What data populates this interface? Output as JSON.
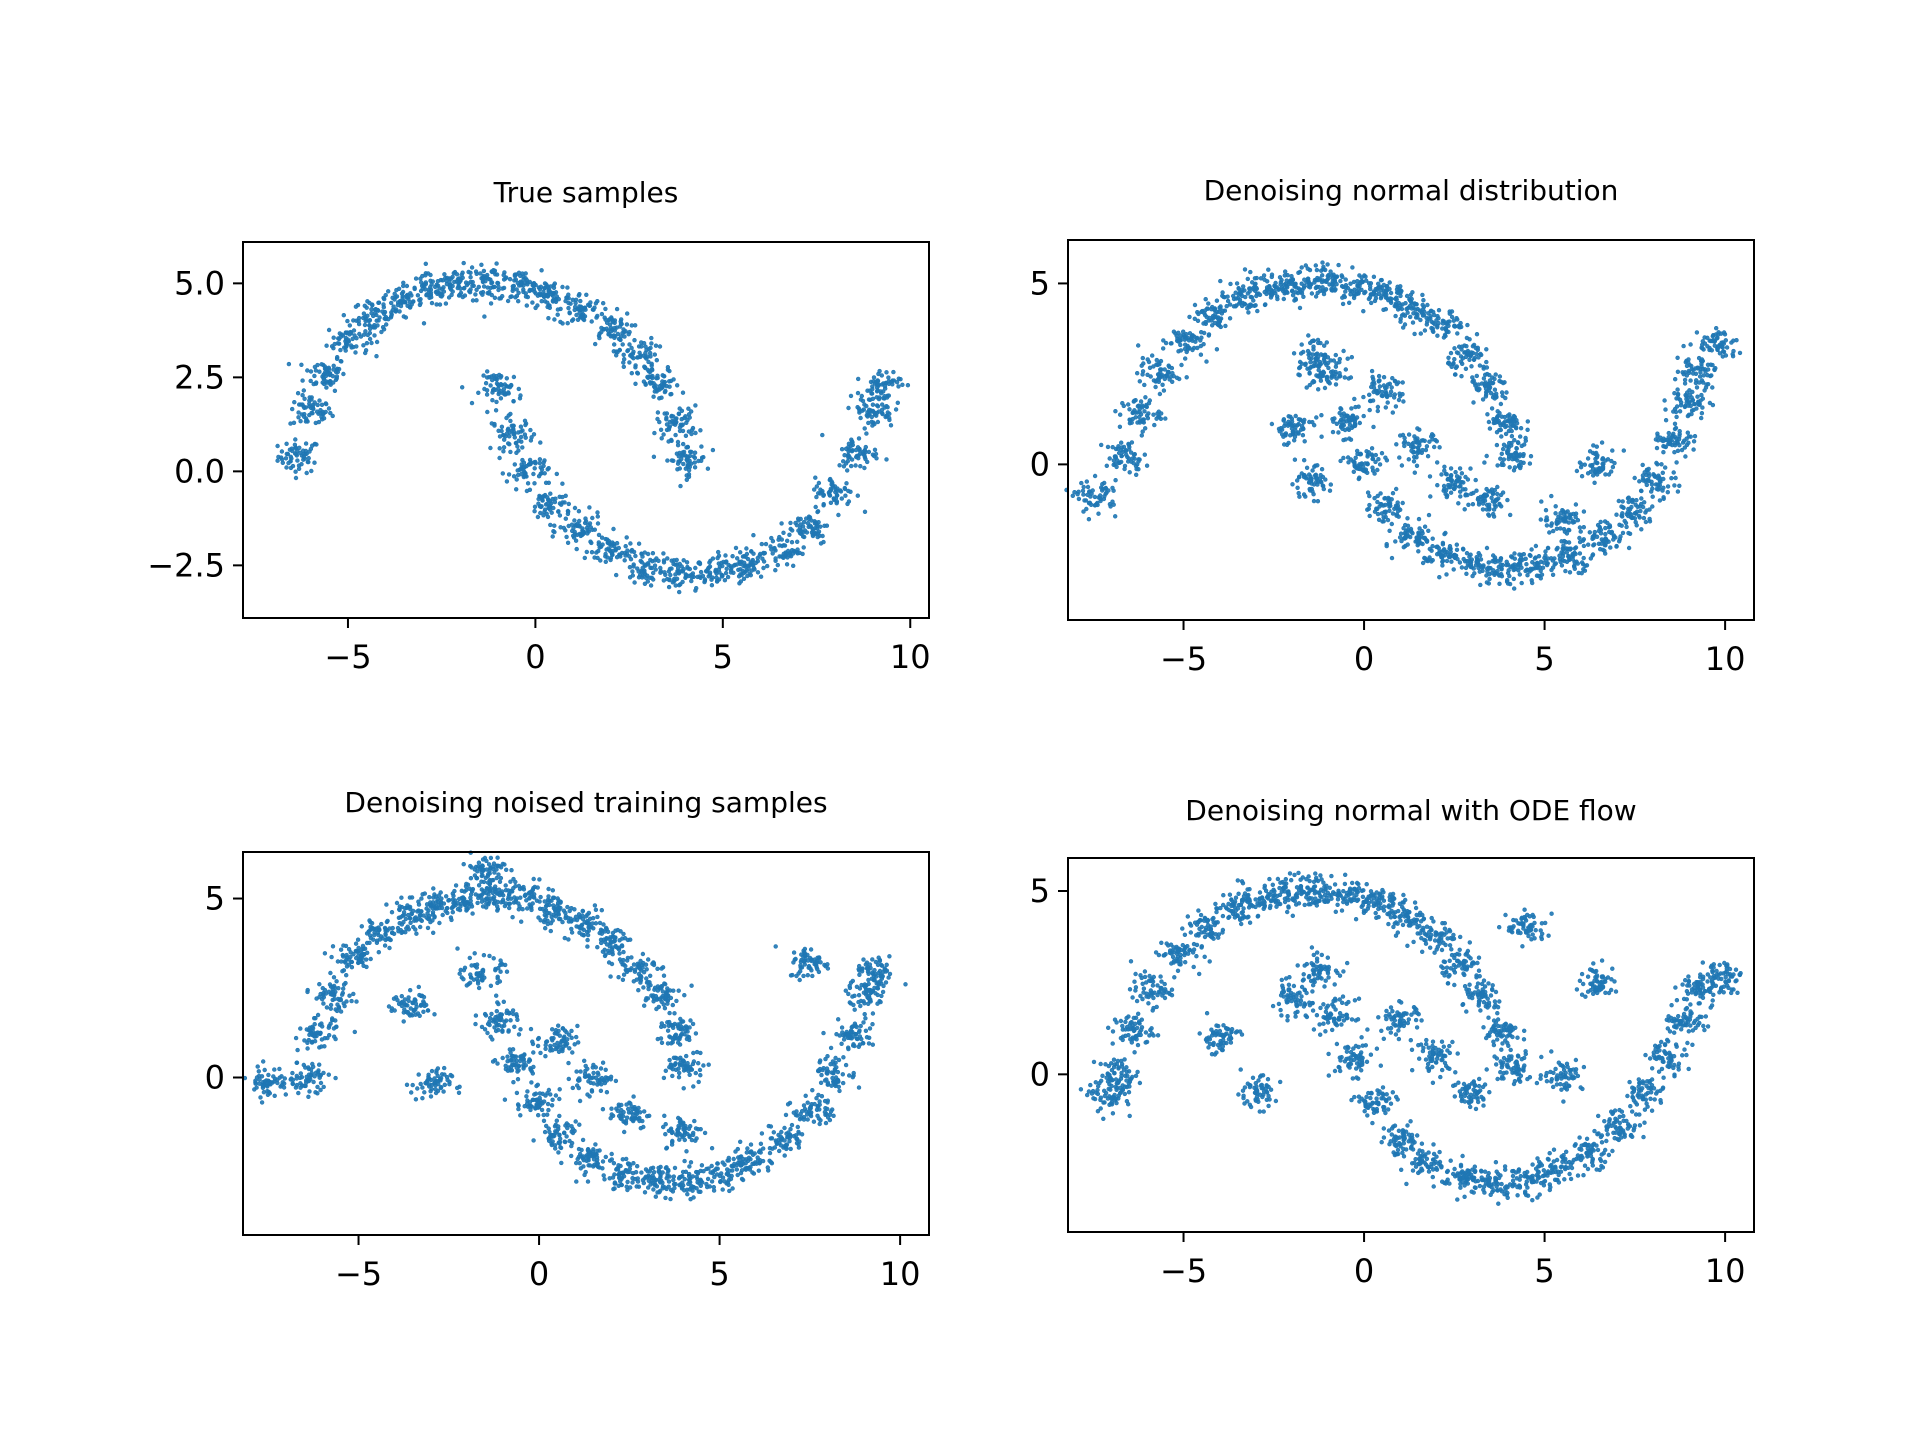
{
  "figure": {
    "marker_color": "#1f77b4"
  },
  "chart_data": [
    {
      "type": "scatter",
      "title": "True samples",
      "xlabel": "",
      "ylabel": "",
      "xlim": [
        -7.8,
        10.5
      ],
      "ylim": [
        -3.9,
        6.1
      ],
      "xticks": [
        -5,
        0,
        5,
        10
      ],
      "xtick_labels": [
        "−5",
        "0",
        "5",
        "10"
      ],
      "yticks": [
        -2.5,
        0.0,
        2.5,
        5.0
      ],
      "ytick_labels": [
        "−2.5",
        "0.0",
        "2.5",
        "5.0"
      ],
      "grid": false,
      "series": [
        {
          "values": [
            [
              -6.3,
              0.4
            ],
            [
              -6.0,
              1.6
            ],
            [
              -5.6,
              2.6
            ],
            [
              -5.0,
              3.5
            ],
            [
              -4.3,
              4.1
            ],
            [
              -3.6,
              4.5
            ],
            [
              -2.8,
              4.8
            ],
            [
              -2.0,
              5.0
            ],
            [
              -1.2,
              5.0
            ],
            [
              -0.4,
              4.9
            ],
            [
              0.4,
              4.7
            ],
            [
              1.2,
              4.3
            ],
            [
              2.0,
              3.8
            ],
            [
              2.7,
              3.1
            ],
            [
              3.3,
              2.3
            ],
            [
              3.8,
              1.3
            ],
            [
              4.0,
              0.3
            ],
            [
              -0.9,
              2.2
            ],
            [
              -0.6,
              1.0
            ],
            [
              -0.2,
              0.0
            ],
            [
              0.4,
              -0.9
            ],
            [
              1.2,
              -1.6
            ],
            [
              2.0,
              -2.1
            ],
            [
              2.9,
              -2.5
            ],
            [
              3.8,
              -2.7
            ],
            [
              4.7,
              -2.7
            ],
            [
              5.6,
              -2.5
            ],
            [
              6.5,
              -2.1
            ],
            [
              7.3,
              -1.5
            ],
            [
              8.0,
              -0.6
            ],
            [
              8.6,
              0.5
            ],
            [
              9.0,
              1.6
            ],
            [
              9.2,
              2.3
            ]
          ]
        }
      ]
    },
    {
      "type": "scatter",
      "title": "Denoising normal distribution",
      "xlabel": "",
      "ylabel": "",
      "xlim": [
        -8.2,
        10.8
      ],
      "ylim": [
        -4.3,
        6.2
      ],
      "xticks": [
        -5,
        0,
        5,
        10
      ],
      "xtick_labels": [
        "−5",
        "0",
        "5",
        "10"
      ],
      "yticks": [
        0,
        5
      ],
      "ytick_labels": [
        "0",
        "5"
      ],
      "grid": false,
      "series": [
        {
          "values": [
            [
              -6.6,
              0.2
            ],
            [
              -6.2,
              1.4
            ],
            [
              -5.7,
              2.5
            ],
            [
              -5.0,
              3.4
            ],
            [
              -4.2,
              4.1
            ],
            [
              -3.4,
              4.6
            ],
            [
              -2.6,
              4.9
            ],
            [
              -1.8,
              5.0
            ],
            [
              -1.0,
              5.1
            ],
            [
              -0.2,
              4.9
            ],
            [
              0.6,
              4.7
            ],
            [
              1.4,
              4.3
            ],
            [
              2.2,
              3.8
            ],
            [
              2.9,
              3.0
            ],
            [
              3.5,
              2.1
            ],
            [
              3.9,
              1.1
            ],
            [
              4.1,
              0.3
            ],
            [
              -1.4,
              3.0
            ],
            [
              -1.0,
              2.5
            ],
            [
              -0.5,
              1.2
            ],
            [
              0.0,
              0.0
            ],
            [
              0.6,
              -1.2
            ],
            [
              1.4,
              -2.0
            ],
            [
              2.2,
              -2.5
            ],
            [
              3.1,
              -2.8
            ],
            [
              4.0,
              -2.9
            ],
            [
              4.9,
              -2.8
            ],
            [
              5.8,
              -2.5
            ],
            [
              6.7,
              -2.0
            ],
            [
              7.5,
              -1.3
            ],
            [
              8.1,
              -0.4
            ],
            [
              8.6,
              0.7
            ],
            [
              9.0,
              1.7
            ],
            [
              9.2,
              2.6
            ],
            [
              -2.0,
              1.0
            ],
            [
              -1.5,
              -0.5
            ],
            [
              0.5,
              2.0
            ],
            [
              1.5,
              0.5
            ],
            [
              2.5,
              -0.5
            ],
            [
              3.5,
              -1.0
            ],
            [
              5.5,
              -1.5
            ],
            [
              6.5,
              0.0
            ],
            [
              9.8,
              3.3
            ],
            [
              -7.4,
              -0.9
            ]
          ]
        }
      ]
    },
    {
      "type": "scatter",
      "title": "Denoising noised training samples",
      "xlabel": "",
      "ylabel": "",
      "xlim": [
        -8.2,
        10.8
      ],
      "ylim": [
        -4.4,
        6.3
      ],
      "xticks": [
        -5,
        0,
        5,
        10
      ],
      "xtick_labels": [
        "−5",
        "0",
        "5",
        "10"
      ],
      "yticks": [
        0,
        5
      ],
      "ytick_labels": [
        "0",
        "5"
      ],
      "grid": false,
      "series": [
        {
          "values": [
            [
              -6.4,
              0.0
            ],
            [
              -6.1,
              1.2
            ],
            [
              -5.7,
              2.3
            ],
            [
              -5.1,
              3.3
            ],
            [
              -4.4,
              4.0
            ],
            [
              -3.6,
              4.5
            ],
            [
              -2.8,
              4.8
            ],
            [
              -2.0,
              5.0
            ],
            [
              -1.2,
              5.1
            ],
            [
              -0.4,
              5.0
            ],
            [
              0.4,
              4.7
            ],
            [
              1.2,
              4.3
            ],
            [
              2.0,
              3.8
            ],
            [
              2.7,
              3.1
            ],
            [
              3.3,
              2.3
            ],
            [
              3.8,
              1.3
            ],
            [
              4.1,
              0.3
            ],
            [
              -1.6,
              2.9
            ],
            [
              -1.1,
              1.6
            ],
            [
              -0.6,
              0.4
            ],
            [
              -0.1,
              -0.7
            ],
            [
              0.6,
              -1.6
            ],
            [
              1.4,
              -2.3
            ],
            [
              2.3,
              -2.7
            ],
            [
              3.2,
              -2.9
            ],
            [
              4.1,
              -2.9
            ],
            [
              5.0,
              -2.7
            ],
            [
              5.9,
              -2.3
            ],
            [
              6.8,
              -1.7
            ],
            [
              7.6,
              -0.9
            ],
            [
              8.2,
              0.1
            ],
            [
              8.7,
              1.2
            ],
            [
              9.1,
              2.3
            ],
            [
              9.3,
              2.9
            ],
            [
              -3.5,
              2.0
            ],
            [
              -3.0,
              -0.2
            ],
            [
              0.5,
              1.0
            ],
            [
              1.5,
              0.0
            ],
            [
              2.5,
              -1.0
            ],
            [
              4.0,
              -1.5
            ],
            [
              7.5,
              3.2
            ],
            [
              -7.5,
              -0.1
            ],
            [
              -1.5,
              5.8
            ]
          ]
        }
      ]
    },
    {
      "type": "scatter",
      "title": "Denoising normal with ODE flow",
      "xlabel": "",
      "ylabel": "",
      "xlim": [
        -8.2,
        10.8
      ],
      "ylim": [
        -4.3,
        5.9
      ],
      "xticks": [
        -5,
        0,
        5,
        10
      ],
      "xtick_labels": [
        "−5",
        "0",
        "5",
        "10"
      ],
      "yticks": [
        0,
        5
      ],
      "ytick_labels": [
        "0",
        "5"
      ],
      "grid": false,
      "series": [
        {
          "values": [
            [
              -6.8,
              0.0
            ],
            [
              -6.4,
              1.2
            ],
            [
              -5.9,
              2.3
            ],
            [
              -5.2,
              3.3
            ],
            [
              -4.4,
              4.0
            ],
            [
              -3.6,
              4.5
            ],
            [
              -2.8,
              4.8
            ],
            [
              -2.0,
              5.0
            ],
            [
              -1.2,
              5.0
            ],
            [
              -0.4,
              4.9
            ],
            [
              0.4,
              4.7
            ],
            [
              1.2,
              4.3
            ],
            [
              2.0,
              3.7
            ],
            [
              2.7,
              3.0
            ],
            [
              3.3,
              2.1
            ],
            [
              3.8,
              1.1
            ],
            [
              4.1,
              0.2
            ],
            [
              -1.3,
              2.9
            ],
            [
              -0.8,
              1.6
            ],
            [
              -0.3,
              0.4
            ],
            [
              0.3,
              -0.8
            ],
            [
              1.0,
              -1.8
            ],
            [
              1.8,
              -2.4
            ],
            [
              2.7,
              -2.8
            ],
            [
              3.6,
              -3.0
            ],
            [
              4.5,
              -2.9
            ],
            [
              5.4,
              -2.6
            ],
            [
              6.3,
              -2.1
            ],
            [
              7.1,
              -1.4
            ],
            [
              7.8,
              -0.5
            ],
            [
              8.4,
              0.5
            ],
            [
              8.9,
              1.5
            ],
            [
              9.3,
              2.3
            ],
            [
              9.9,
              2.7
            ],
            [
              -4.0,
              1.0
            ],
            [
              -3.0,
              -0.5
            ],
            [
              -2.0,
              2.0
            ],
            [
              1.0,
              1.5
            ],
            [
              2.0,
              0.5
            ],
            [
              3.0,
              -0.5
            ],
            [
              5.5,
              0.0
            ],
            [
              6.5,
              2.5
            ],
            [
              4.5,
              4.0
            ],
            [
              -7.0,
              -0.6
            ]
          ]
        }
      ]
    }
  ]
}
